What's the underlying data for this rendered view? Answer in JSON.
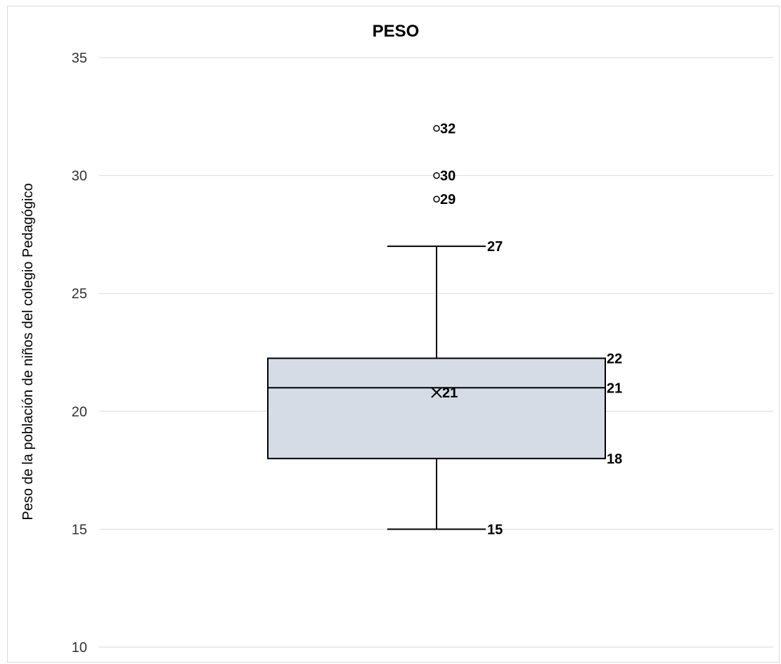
{
  "chart_data": {
    "type": "box",
    "title": "PESO",
    "xlabel": "",
    "ylabel": "Peso  de la población de niños del colegio Pedagógico",
    "ylim": [
      10,
      35
    ],
    "yticks": [
      "10",
      "15",
      "20",
      "25",
      "30",
      "35"
    ],
    "grid": true,
    "box": {
      "min": 15,
      "q1": 18,
      "median": 21,
      "q3": 22.25,
      "max": 27,
      "mean": 20.8,
      "outliers": [
        32,
        30,
        29
      ]
    },
    "labels": {
      "min": "15",
      "q1": "18",
      "median": "21",
      "q3": "22",
      "max": "27",
      "mean": "21",
      "outliers": [
        "32",
        "30",
        "29"
      ]
    },
    "colors": {
      "box_fill": "#d6dce5",
      "box_stroke": "#000000",
      "gridline": "#d9d9d9"
    }
  }
}
